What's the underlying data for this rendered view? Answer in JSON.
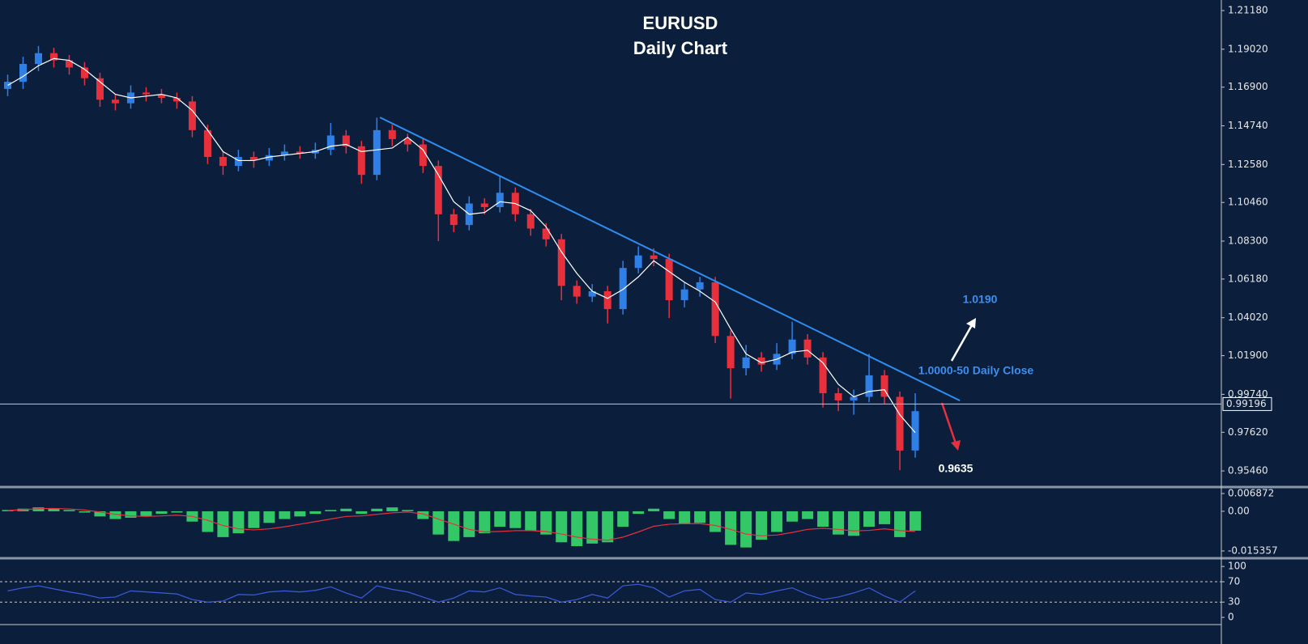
{
  "chart_data": [
    {
      "type": "candlestick",
      "title": "EURUSD",
      "subtitle": "Daily Chart",
      "up_color": "#2f7fe6",
      "down_color": "#e8303c",
      "xlim": [
        -0.5,
        78.9
      ],
      "ylim": [
        0.9465,
        1.2177
      ],
      "yticks": [
        {
          "value": 1.2118,
          "label": "1.21180"
        },
        {
          "value": 1.1902,
          "label": "1.19020"
        },
        {
          "value": 1.169,
          "label": "1.16900"
        },
        {
          "value": 1.1474,
          "label": "1.14740"
        },
        {
          "value": 1.1258,
          "label": "1.12580"
        },
        {
          "value": 1.1046,
          "label": "1.10460"
        },
        {
          "value": 1.083,
          "label": "1.08300"
        },
        {
          "value": 1.0618,
          "label": "1.06180"
        },
        {
          "value": 1.0402,
          "label": "1.04020"
        },
        {
          "value": 1.019,
          "label": "1.01900"
        },
        {
          "value": 0.9974,
          "label": "0.99740"
        },
        {
          "value": 0.9762,
          "label": "0.97620"
        },
        {
          "value": 0.9546,
          "label": "0.95460"
        }
      ],
      "ohlc": [
        [
          1.168,
          1.176,
          1.164,
          1.172
        ],
        [
          1.172,
          1.186,
          1.168,
          1.182
        ],
        [
          1.182,
          1.192,
          1.178,
          1.188
        ],
        [
          1.188,
          1.191,
          1.18,
          1.184
        ],
        [
          1.184,
          1.187,
          1.176,
          1.18
        ],
        [
          1.18,
          1.183,
          1.17,
          1.174
        ],
        [
          1.174,
          1.177,
          1.158,
          1.162
        ],
        [
          1.162,
          1.165,
          1.156,
          1.16
        ],
        [
          1.16,
          1.17,
          1.157,
          1.166
        ],
        [
          1.166,
          1.169,
          1.161,
          1.165
        ],
        [
          1.165,
          1.168,
          1.16,
          1.163
        ],
        [
          1.163,
          1.166,
          1.157,
          1.161
        ],
        [
          1.161,
          1.164,
          1.141,
          1.145
        ],
        [
          1.145,
          1.148,
          1.126,
          1.13
        ],
        [
          1.13,
          1.133,
          1.12,
          1.125
        ],
        [
          1.125,
          1.134,
          1.122,
          1.13
        ],
        [
          1.13,
          1.133,
          1.124,
          1.128
        ],
        [
          1.128,
          1.135,
          1.125,
          1.131
        ],
        [
          1.131,
          1.137,
          1.128,
          1.133
        ],
        [
          1.133,
          1.136,
          1.129,
          1.132
        ],
        [
          1.132,
          1.138,
          1.129,
          1.134
        ],
        [
          1.134,
          1.149,
          1.131,
          1.142
        ],
        [
          1.142,
          1.145,
          1.132,
          1.136
        ],
        [
          1.136,
          1.139,
          1.115,
          1.12
        ],
        [
          1.12,
          1.152,
          1.117,
          1.145
        ],
        [
          1.145,
          1.148,
          1.136,
          1.14
        ],
        [
          1.14,
          1.143,
          1.133,
          1.137
        ],
        [
          1.137,
          1.14,
          1.121,
          1.125
        ],
        [
          1.125,
          1.128,
          1.083,
          1.098
        ],
        [
          1.098,
          1.101,
          1.088,
          1.092
        ],
        [
          1.092,
          1.108,
          1.089,
          1.104
        ],
        [
          1.104,
          1.107,
          1.098,
          1.102
        ],
        [
          1.102,
          1.119,
          1.099,
          1.11
        ],
        [
          1.11,
          1.113,
          1.094,
          1.098
        ],
        [
          1.098,
          1.101,
          1.086,
          1.09
        ],
        [
          1.09,
          1.093,
          1.08,
          1.084
        ],
        [
          1.084,
          1.087,
          1.05,
          1.058
        ],
        [
          1.058,
          1.061,
          1.048,
          1.052
        ],
        [
          1.052,
          1.059,
          1.049,
          1.055
        ],
        [
          1.055,
          1.058,
          1.037,
          1.045
        ],
        [
          1.045,
          1.072,
          1.042,
          1.068
        ],
        [
          1.068,
          1.08,
          1.065,
          1.075
        ],
        [
          1.075,
          1.079,
          1.069,
          1.073
        ],
        [
          1.073,
          1.076,
          1.04,
          1.05
        ],
        [
          1.05,
          1.06,
          1.046,
          1.056
        ],
        [
          1.056,
          1.063,
          1.052,
          1.06
        ],
        [
          1.06,
          1.063,
          1.026,
          1.03
        ],
        [
          1.03,
          1.033,
          0.995,
          1.012
        ],
        [
          1.012,
          1.025,
          1.008,
          1.018
        ],
        [
          1.018,
          1.021,
          1.01,
          1.014
        ],
        [
          1.014,
          1.026,
          1.011,
          1.02
        ],
        [
          1.02,
          1.038,
          1.017,
          1.028
        ],
        [
          1.028,
          1.031,
          1.014,
          1.018
        ],
        [
          1.018,
          1.021,
          0.99,
          0.998
        ],
        [
          0.998,
          1.001,
          0.988,
          0.994
        ],
        [
          0.994,
          1.0,
          0.986,
          0.996
        ],
        [
          0.996,
          1.02,
          0.993,
          1.008
        ],
        [
          1.008,
          1.011,
          0.992,
          0.996
        ],
        [
          0.996,
          0.999,
          0.955,
          0.966
        ],
        [
          0.966,
          0.998,
          0.962,
          0.988
        ]
      ],
      "ma": {
        "color": "#ffffff",
        "values": [
          1.17,
          1.175,
          1.181,
          1.185,
          1.184,
          1.179,
          1.172,
          1.165,
          1.163,
          1.164,
          1.165,
          1.163,
          1.156,
          1.145,
          1.133,
          1.128,
          1.128,
          1.13,
          1.131,
          1.132,
          1.133,
          1.136,
          1.137,
          1.133,
          1.134,
          1.135,
          1.141,
          1.134,
          1.12,
          1.105,
          1.098,
          1.099,
          1.105,
          1.104,
          1.1,
          1.091,
          1.077,
          1.065,
          1.055,
          1.051,
          1.056,
          1.063,
          1.072,
          1.066,
          1.06,
          1.055,
          1.049,
          1.034,
          1.02,
          1.015,
          1.017,
          1.021,
          1.022,
          1.015,
          1.003,
          0.996,
          0.999,
          1.0,
          0.986,
          0.976
        ]
      },
      "trendline": {
        "color": "#2f8cf0",
        "x": [
          24.2,
          61.9
        ],
        "y": [
          1.1521,
          0.9939
        ]
      },
      "current_price": {
        "value": 0.99196,
        "label": "0.99196"
      },
      "annotations": [
        {
          "text": "1.0190",
          "color": "#3d8ef0"
        },
        {
          "text": "1.0000-50 Daily Close",
          "color": "#3d8ef0"
        },
        {
          "text": "0.9635",
          "color": "#ffffff"
        }
      ]
    },
    {
      "type": "macd",
      "xlim": [
        -0.5,
        78.9
      ],
      "ylim": [
        -0.01755,
        0.00875
      ],
      "yticks": [
        0.006872,
        {
          "value": 0,
          "label": "0.00"
        },
        -0.015357
      ],
      "histogram": {
        "color": "#34c767",
        "values": [
          0.0005,
          0.001,
          0.0015,
          0.0012,
          0.0005,
          -0.0005,
          -0.002,
          -0.003,
          -0.0025,
          -0.002,
          -0.001,
          -0.0005,
          -0.004,
          -0.008,
          -0.01,
          -0.0085,
          -0.0065,
          -0.0045,
          -0.003,
          -0.002,
          -0.001,
          0.0005,
          0.001,
          -0.001,
          0.001,
          0.0015,
          0.0005,
          -0.003,
          -0.009,
          -0.0115,
          -0.01,
          -0.0085,
          -0.006,
          -0.0065,
          -0.0075,
          -0.009,
          -0.012,
          -0.0135,
          -0.0125,
          -0.012,
          -0.006,
          -0.001,
          0.001,
          -0.003,
          -0.005,
          -0.0045,
          -0.008,
          -0.013,
          -0.014,
          -0.011,
          -0.008,
          -0.004,
          -0.003,
          -0.006,
          -0.009,
          -0.0095,
          -0.006,
          -0.005,
          -0.01,
          -0.0075
        ]
      },
      "signal": {
        "color": "#e8303c",
        "values": [
          0.0003,
          0.0006,
          0.001,
          0.0011,
          0.0009,
          0.0005,
          -0.0003,
          -0.0012,
          -0.0018,
          -0.002,
          -0.0018,
          -0.0015,
          -0.002,
          -0.0035,
          -0.0055,
          -0.0068,
          -0.0072,
          -0.0068,
          -0.006,
          -0.005,
          -0.004,
          -0.003,
          -0.002,
          -0.0018,
          -0.0012,
          -0.0006,
          -0.0003,
          -0.001,
          -0.003,
          -0.005,
          -0.007,
          -0.008,
          -0.0078,
          -0.0075,
          -0.0075,
          -0.0078,
          -0.0088,
          -0.01,
          -0.0108,
          -0.0112,
          -0.01,
          -0.008,
          -0.0058,
          -0.005,
          -0.0048,
          -0.0048,
          -0.0055,
          -0.007,
          -0.0088,
          -0.0095,
          -0.0092,
          -0.0082,
          -0.007,
          -0.0066,
          -0.007,
          -0.0076,
          -0.0074,
          -0.0068,
          -0.0075,
          -0.0078
        ]
      }
    },
    {
      "type": "rsi",
      "xlim": [
        -0.5,
        78.9
      ],
      "ylim": [
        -11,
        113
      ],
      "yticks": [
        100,
        70,
        30,
        0
      ],
      "levels": [
        70,
        30
      ],
      "color": "#3b5bdb",
      "values": [
        52,
        58,
        62,
        56,
        50,
        45,
        38,
        40,
        52,
        50,
        48,
        46,
        35,
        30,
        32,
        45,
        44,
        50,
        52,
        50,
        53,
        60,
        48,
        38,
        62,
        55,
        50,
        40,
        30,
        38,
        52,
        50,
        58,
        45,
        42,
        40,
        30,
        35,
        45,
        38,
        62,
        65,
        58,
        40,
        52,
        55,
        35,
        30,
        48,
        45,
        52,
        58,
        45,
        35,
        40,
        48,
        58,
        42,
        30,
        52
      ]
    }
  ]
}
